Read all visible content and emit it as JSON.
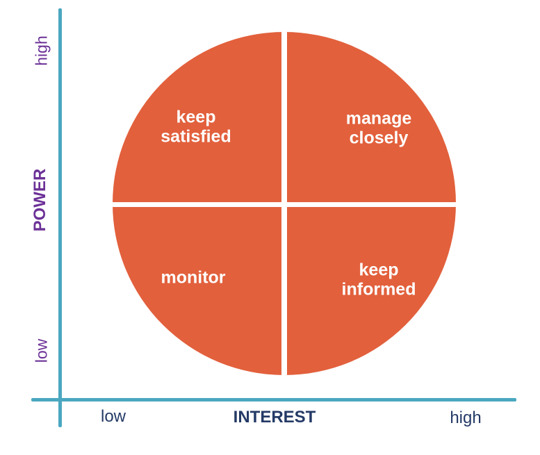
{
  "diagram": {
    "type": "power-interest-grid",
    "quadrants": {
      "top_left": "keep\nsatisfied",
      "top_right": "manage\nclosely",
      "bottom_left": "monitor",
      "bottom_right": "keep\ninformed"
    },
    "y_axis": {
      "title": "POWER",
      "top_label": "high",
      "bottom_label": "low"
    },
    "x_axis": {
      "title": "INTEREST",
      "left_label": "low",
      "right_label": "high"
    },
    "colors": {
      "circle_fill": "#e2603c",
      "axis_line": "#4ba7c0",
      "y_axis_text": "#6c3197",
      "x_axis_text": "#243a66",
      "quadrant_text": "#ffffff",
      "divider": "#ffffff",
      "background": "#ffffff"
    }
  }
}
